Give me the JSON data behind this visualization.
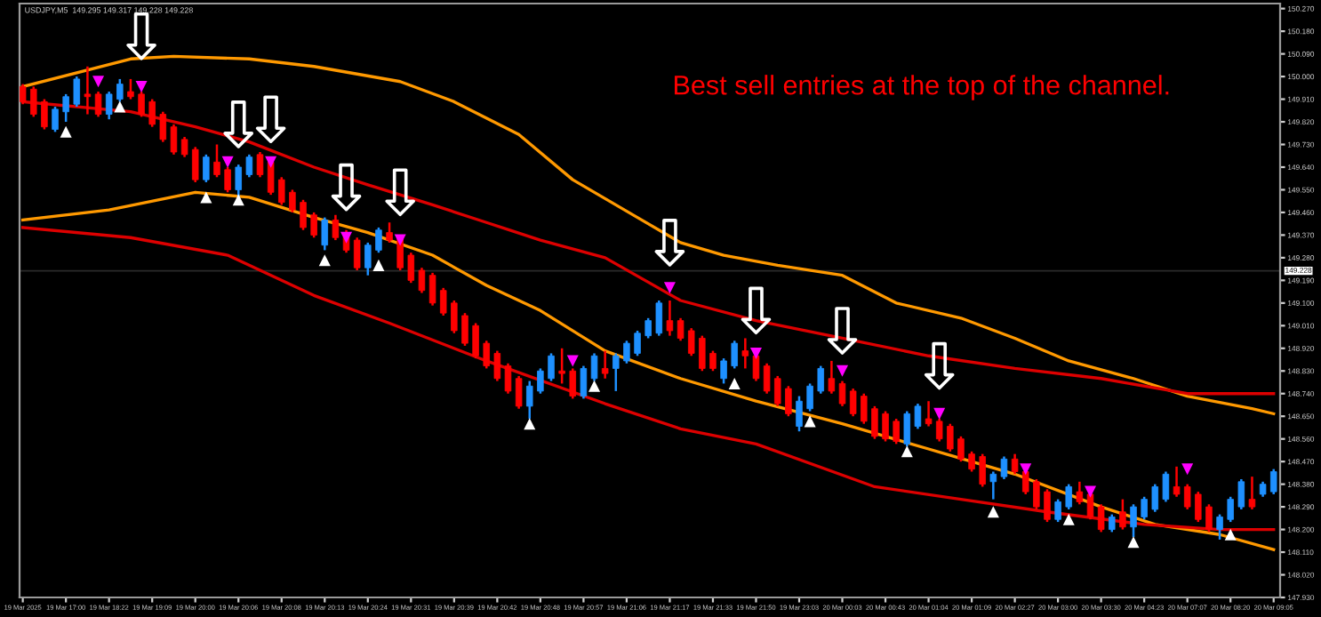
{
  "chart_data": {
    "type": "candlestick",
    "title": "USDJPY,M5  149.295 149.317 149.228 149.228",
    "annotations": [
      "Best sell entries at the top of the channel."
    ],
    "categories": [
      "19 Mar 2025",
      null,
      null,
      null,
      "19 Mar 17:00",
      null,
      null,
      null,
      "19 Mar 18:22",
      null,
      null,
      null,
      "19 Mar 19:09",
      null,
      null,
      null,
      "19 Mar 20:00",
      null,
      null,
      null,
      "19 Mar 20:06",
      null,
      null,
      null,
      "19 Mar 20:08",
      null,
      null,
      null,
      "19 Mar 20:13",
      null,
      null,
      null,
      "19 Mar 20:24",
      null,
      null,
      null,
      "19 Mar 20:31",
      null,
      null,
      null,
      "19 Mar 20:39",
      null,
      null,
      null,
      "19 Mar 20:42",
      null,
      null,
      null,
      "19 Mar 20:48",
      null,
      null,
      null,
      "19 Mar 20:57",
      null,
      null,
      null,
      "19 Mar 21:06",
      null,
      null,
      null,
      "19 Mar 21:17",
      null,
      null,
      null,
      "19 Mar 21:33",
      null,
      null,
      null,
      "19 Mar 21:50",
      null,
      null,
      null,
      "19 Mar 23:03",
      null,
      null,
      null,
      "20 Mar 00:03",
      null,
      null,
      null,
      "20 Mar 00:43",
      null,
      null,
      null,
      "20 Mar 01:04",
      null,
      null,
      null,
      "20 Mar 01:09",
      null,
      null,
      null,
      "20 Mar 02:27",
      null,
      null,
      null,
      "20 Mar 03:00",
      null,
      null,
      null,
      "20 Mar 03:30",
      null,
      null,
      null,
      "20 Mar 04:23",
      null,
      null,
      null,
      "20 Mar 07:07",
      null,
      null,
      null,
      "20 Mar 08:20",
      null,
      null,
      null,
      "20 Mar 09:05"
    ],
    "ylim": [
      147.93,
      150.29
    ],
    "yticks": [
      {
        "value": 147.93,
        "label": "147.930"
      },
      {
        "value": 148.02,
        "label": "148.020"
      },
      {
        "value": 148.11,
        "label": "148.110"
      },
      {
        "value": 148.2,
        "label": "148.200"
      },
      {
        "value": 148.29,
        "label": "148.290"
      },
      {
        "value": 148.38,
        "label": "148.380"
      },
      {
        "value": 148.47,
        "label": "148.470"
      },
      {
        "value": 148.56,
        "label": "148.560"
      },
      {
        "value": 148.65,
        "label": "148.650"
      },
      {
        "value": 148.74,
        "label": "148.740"
      },
      {
        "value": 148.83,
        "label": "148.830"
      },
      {
        "value": 148.92,
        "label": "148.920"
      },
      {
        "value": 149.01,
        "label": "149.010"
      },
      {
        "value": 149.1,
        "label": "149.100"
      },
      {
        "value": 149.19,
        "label": "149.190"
      },
      {
        "value": 149.28,
        "label": "149.280"
      },
      {
        "value": 149.37,
        "label": "149.370"
      },
      {
        "value": 149.46,
        "label": "149.460"
      },
      {
        "value": 149.55,
        "label": "149.550"
      },
      {
        "value": 149.64,
        "label": "149.640"
      },
      {
        "value": 149.73,
        "label": "149.730"
      },
      {
        "value": 149.82,
        "label": "149.820"
      },
      {
        "value": 149.91,
        "label": "149.910"
      },
      {
        "value": 150.0,
        "label": "150.000"
      },
      {
        "value": 150.09,
        "label": "150.090"
      },
      {
        "value": 150.18,
        "label": "150.180"
      },
      {
        "value": 150.27,
        "label": "150.270"
      }
    ],
    "ref_lines": [
      {
        "axis": "y",
        "value": 149.228,
        "label": "149.228",
        "color": "#2a2a2a"
      }
    ],
    "grid": false,
    "legend": false,
    "ohlc": [
      [
        149.96,
        149.97,
        149.89,
        149.9
      ],
      [
        149.95,
        149.96,
        149.84,
        149.85
      ],
      [
        149.9,
        149.91,
        149.79,
        149.8
      ],
      [
        149.79,
        149.88,
        149.78,
        149.87
      ],
      [
        149.86,
        149.93,
        149.82,
        149.92
      ],
      [
        149.89,
        150.0,
        149.88,
        149.99
      ],
      [
        149.93,
        150.04,
        149.85,
        149.92
      ],
      [
        149.93,
        149.94,
        149.84,
        149.85
      ],
      [
        149.85,
        149.94,
        149.83,
        149.93
      ],
      [
        149.91,
        149.99,
        149.9,
        149.97
      ],
      [
        149.94,
        149.99,
        149.91,
        149.92
      ],
      [
        149.93,
        149.94,
        149.84,
        149.85
      ],
      [
        149.9,
        149.91,
        149.8,
        149.81
      ],
      [
        149.85,
        149.86,
        149.74,
        149.75
      ],
      [
        149.8,
        149.81,
        149.69,
        149.7
      ],
      [
        149.75,
        149.76,
        149.68,
        149.69
      ],
      [
        149.71,
        149.72,
        149.58,
        149.59
      ],
      [
        149.59,
        149.69,
        149.58,
        149.68
      ],
      [
        149.66,
        149.73,
        149.6,
        149.61
      ],
      [
        149.63,
        149.64,
        149.54,
        149.55
      ],
      [
        149.55,
        149.65,
        149.52,
        149.64
      ],
      [
        149.61,
        149.69,
        149.6,
        149.68
      ],
      [
        149.69,
        149.7,
        149.6,
        149.61
      ],
      [
        149.66,
        149.67,
        149.53,
        149.54
      ],
      [
        149.59,
        149.6,
        149.49,
        149.5
      ],
      [
        149.54,
        149.55,
        149.46,
        149.47
      ],
      [
        149.5,
        149.51,
        149.39,
        149.4
      ],
      [
        149.45,
        149.46,
        149.36,
        149.37
      ],
      [
        149.33,
        149.44,
        149.31,
        149.43
      ],
      [
        149.43,
        149.45,
        149.35,
        149.36
      ],
      [
        149.38,
        149.39,
        149.3,
        149.31
      ],
      [
        149.35,
        149.36,
        149.23,
        149.24
      ],
      [
        149.24,
        149.34,
        149.21,
        149.33
      ],
      [
        149.31,
        149.4,
        149.3,
        149.39
      ],
      [
        149.38,
        149.42,
        149.34,
        149.35
      ],
      [
        149.36,
        149.37,
        149.23,
        149.24
      ],
      [
        149.29,
        149.3,
        149.18,
        149.19
      ],
      [
        149.23,
        149.24,
        149.14,
        149.15
      ],
      [
        149.21,
        149.22,
        149.09,
        149.1
      ],
      [
        149.15,
        149.16,
        149.05,
        149.06
      ],
      [
        149.1,
        149.11,
        148.98,
        148.99
      ],
      [
        149.05,
        149.06,
        148.93,
        148.94
      ],
      [
        149.01,
        149.02,
        148.88,
        148.89
      ],
      [
        148.94,
        148.95,
        148.84,
        148.85
      ],
      [
        148.9,
        148.91,
        148.79,
        148.8
      ],
      [
        148.85,
        148.86,
        148.74,
        148.75
      ],
      [
        148.8,
        148.81,
        148.68,
        148.69
      ],
      [
        148.69,
        148.79,
        148.64,
        148.77
      ],
      [
        148.75,
        148.84,
        148.74,
        148.83
      ],
      [
        148.8,
        148.9,
        148.79,
        148.89
      ],
      [
        148.83,
        148.92,
        148.78,
        148.82
      ],
      [
        148.83,
        148.84,
        148.72,
        148.73
      ],
      [
        148.73,
        148.85,
        148.72,
        148.84
      ],
      [
        148.8,
        148.9,
        148.79,
        148.89
      ],
      [
        148.84,
        148.91,
        148.8,
        148.82
      ],
      [
        148.84,
        148.9,
        148.75,
        148.89
      ],
      [
        148.87,
        148.95,
        148.86,
        148.94
      ],
      [
        148.9,
        148.99,
        148.89,
        148.98
      ],
      [
        148.97,
        149.04,
        148.96,
        149.03
      ],
      [
        148.98,
        149.11,
        148.97,
        149.1
      ],
      [
        149.03,
        149.11,
        148.97,
        148.99
      ],
      [
        149.03,
        149.04,
        148.95,
        148.96
      ],
      [
        148.99,
        149.0,
        148.89,
        148.9
      ],
      [
        148.96,
        148.97,
        148.83,
        148.84
      ],
      [
        148.9,
        148.91,
        148.83,
        148.84
      ],
      [
        148.8,
        148.88,
        148.78,
        148.87
      ],
      [
        148.85,
        148.95,
        148.84,
        148.94
      ],
      [
        148.91,
        148.96,
        148.84,
        148.89
      ],
      [
        148.89,
        148.9,
        148.79,
        148.8
      ],
      [
        148.85,
        148.86,
        148.74,
        148.75
      ],
      [
        148.8,
        148.81,
        148.69,
        148.7
      ],
      [
        148.76,
        148.77,
        148.65,
        148.66
      ],
      [
        148.61,
        148.73,
        148.59,
        148.71
      ],
      [
        148.68,
        148.78,
        148.67,
        148.77
      ],
      [
        148.75,
        148.85,
        148.74,
        148.84
      ],
      [
        148.8,
        148.87,
        148.74,
        148.75
      ],
      [
        148.78,
        148.79,
        148.69,
        148.7
      ],
      [
        148.75,
        148.76,
        148.65,
        148.66
      ],
      [
        148.73,
        148.74,
        148.62,
        148.63
      ],
      [
        148.68,
        148.69,
        148.56,
        148.57
      ],
      [
        148.66,
        148.67,
        148.55,
        148.56
      ],
      [
        148.63,
        148.64,
        148.54,
        148.55
      ],
      [
        148.54,
        148.67,
        148.53,
        148.66
      ],
      [
        148.61,
        148.7,
        148.6,
        148.69
      ],
      [
        148.64,
        148.71,
        148.61,
        148.62
      ],
      [
        148.63,
        148.64,
        148.55,
        148.56
      ],
      [
        148.61,
        148.62,
        148.51,
        148.52
      ],
      [
        148.56,
        148.57,
        148.47,
        148.48
      ],
      [
        148.5,
        148.51,
        148.43,
        148.44
      ],
      [
        148.49,
        148.5,
        148.37,
        148.38
      ],
      [
        148.39,
        148.43,
        148.32,
        148.42
      ],
      [
        148.41,
        148.49,
        148.4,
        148.48
      ],
      [
        148.48,
        148.5,
        148.42,
        148.43
      ],
      [
        148.43,
        148.44,
        148.34,
        148.35
      ],
      [
        148.39,
        148.4,
        148.28,
        148.29
      ],
      [
        148.35,
        148.36,
        148.23,
        148.24
      ],
      [
        148.24,
        148.32,
        148.23,
        148.31
      ],
      [
        148.29,
        148.38,
        148.28,
        148.37
      ],
      [
        148.35,
        148.39,
        148.3,
        148.31
      ],
      [
        148.34,
        148.35,
        148.24,
        148.25
      ],
      [
        148.29,
        148.3,
        148.19,
        148.2
      ],
      [
        148.2,
        148.26,
        148.19,
        148.25
      ],
      [
        148.27,
        148.32,
        148.2,
        148.21
      ],
      [
        148.21,
        148.3,
        148.17,
        148.29
      ],
      [
        148.25,
        148.33,
        148.24,
        148.32
      ],
      [
        148.28,
        148.38,
        148.27,
        148.37
      ],
      [
        148.32,
        148.43,
        148.31,
        148.42
      ],
      [
        148.37,
        148.45,
        148.33,
        148.34
      ],
      [
        148.37,
        148.38,
        148.28,
        148.29
      ],
      [
        148.34,
        148.35,
        148.23,
        148.24
      ],
      [
        148.29,
        148.3,
        148.19,
        148.2
      ],
      [
        148.2,
        148.26,
        148.16,
        148.25
      ],
      [
        148.24,
        148.33,
        148.23,
        148.32
      ],
      [
        148.29,
        148.4,
        148.28,
        148.39
      ],
      [
        148.32,
        148.41,
        148.28,
        148.29
      ],
      [
        148.34,
        148.39,
        148.33,
        148.38
      ],
      [
        148.35,
        148.44,
        148.34,
        148.43
      ]
    ],
    "colors": [
      "#ff0000",
      "#ff0000",
      "#ff0000",
      "#1e90ff",
      "#1e90ff",
      "#1e90ff",
      "#ff0000",
      "#ff0000",
      "#1e90ff",
      "#1e90ff",
      "#ff0000",
      "#ff0000",
      "#ff0000",
      "#ff0000",
      "#ff0000",
      "#ff0000",
      "#ff0000",
      "#1e90ff",
      "#ff0000",
      "#ff0000",
      "#1e90ff",
      "#1e90ff",
      "#ff0000",
      "#ff0000",
      "#ff0000",
      "#ff0000",
      "#ff0000",
      "#ff0000",
      "#1e90ff",
      "#ff0000",
      "#ff0000",
      "#ff0000",
      "#1e90ff",
      "#1e90ff",
      "#ff0000",
      "#ff0000",
      "#ff0000",
      "#ff0000",
      "#ff0000",
      "#ff0000",
      "#ff0000",
      "#ff0000",
      "#ff0000",
      "#ff0000",
      "#ff0000",
      "#ff0000",
      "#ff0000",
      "#1e90ff",
      "#1e90ff",
      "#1e90ff",
      "#ff0000",
      "#ff0000",
      "#1e90ff",
      "#1e90ff",
      "#ff0000",
      "#1e90ff",
      "#1e90ff",
      "#1e90ff",
      "#1e90ff",
      "#1e90ff",
      "#ff0000",
      "#ff0000",
      "#ff0000",
      "#ff0000",
      "#ff0000",
      "#1e90ff",
      "#1e90ff",
      "#ff0000",
      "#ff0000",
      "#ff0000",
      "#ff0000",
      "#ff0000",
      "#1e90ff",
      "#1e90ff",
      "#1e90ff",
      "#ff0000",
      "#ff0000",
      "#ff0000",
      "#ff0000",
      "#ff0000",
      "#ff0000",
      "#ff0000",
      "#1e90ff",
      "#1e90ff",
      "#ff0000",
      "#ff0000",
      "#ff0000",
      "#ff0000",
      "#ff0000",
      "#ff0000",
      "#1e90ff",
      "#1e90ff",
      "#ff0000",
      "#ff0000",
      "#ff0000",
      "#ff0000",
      "#1e90ff",
      "#1e90ff",
      "#ff0000",
      "#ff0000",
      "#ff0000",
      "#1e90ff",
      "#ff0000",
      "#1e90ff",
      "#1e90ff",
      "#1e90ff",
      "#1e90ff",
      "#ff0000",
      "#ff0000",
      "#ff0000",
      "#ff0000",
      "#1e90ff",
      "#1e90ff",
      "#1e90ff",
      "#ff0000",
      "#1e90ff",
      "#1e90ff"
    ],
    "series": [
      {
        "type": "line",
        "color": "#ff9900",
        "values": [
          149.96,
          null,
          null,
          null,
          null,
          null,
          null,
          null,
          null,
          null,
          150.07,
          null,
          null,
          null,
          150.08,
          null,
          null,
          null,
          null,
          null,
          null,
          150.07,
          null,
          null,
          null,
          null,
          null,
          150.04,
          null,
          null,
          null,
          null,
          null,
          null,
          null,
          149.98,
          null,
          null,
          null,
          null,
          149.9,
          null,
          null,
          null,
          null,
          null,
          149.77,
          null,
          null,
          null,
          null,
          149.59,
          null,
          null,
          null,
          null,
          null,
          149.44,
          null,
          null,
          null,
          149.34,
          null,
          null,
          null,
          149.29,
          null,
          null,
          null,
          null,
          149.25,
          null,
          null,
          null,
          null,
          null,
          149.21,
          null,
          null,
          null,
          null,
          149.1,
          null,
          null,
          null,
          null,
          null,
          149.04,
          null,
          null,
          null,
          null,
          148.96,
          null,
          null,
          null,
          null,
          148.87,
          null,
          null,
          null,
          null,
          null,
          148.8,
          null,
          null,
          null,
          null,
          148.73,
          null,
          null,
          null,
          null,
          null,
          148.68,
          null,
          148.66
        ]
      },
      {
        "type": "line",
        "color": "#dd0000",
        "values": [
          149.9,
          null,
          null,
          null,
          null,
          null,
          null,
          null,
          null,
          null,
          149.86,
          null,
          null,
          null,
          null,
          null,
          149.8,
          null,
          null,
          null,
          null,
          149.74,
          null,
          null,
          null,
          null,
          null,
          149.64,
          null,
          null,
          null,
          null,
          149.57,
          null,
          null,
          null,
          null,
          null,
          149.49,
          null,
          null,
          null,
          null,
          149.42,
          null,
          null,
          null,
          null,
          149.35,
          null,
          null,
          null,
          null,
          null,
          149.28,
          null,
          null,
          null,
          null,
          null,
          null,
          149.11,
          null,
          null,
          null,
          null,
          null,
          null,
          149.03,
          null,
          null,
          null,
          null,
          null,
          null,
          null,
          148.96,
          null,
          null,
          null,
          null,
          null,
          null,
          null,
          148.89,
          null,
          null,
          null,
          null,
          null,
          null,
          null,
          148.84,
          null,
          null,
          null,
          null,
          null,
          null,
          null,
          148.8,
          null,
          null,
          null,
          null,
          null,
          null,
          null,
          148.74,
          null,
          null,
          null,
          null,
          null,
          null,
          null,
          148.74
        ]
      },
      {
        "type": "line",
        "color": "#ff9900",
        "values": [
          149.43,
          null,
          null,
          null,
          null,
          null,
          null,
          null,
          149.47,
          null,
          null,
          null,
          null,
          null,
          null,
          null,
          149.54,
          null,
          null,
          null,
          null,
          149.52,
          null,
          null,
          null,
          null,
          null,
          149.44,
          null,
          null,
          null,
          null,
          149.38,
          null,
          null,
          null,
          null,
          null,
          149.29,
          null,
          null,
          null,
          null,
          149.17,
          null,
          null,
          null,
          null,
          149.07,
          null,
          null,
          null,
          null,
          null,
          148.91,
          null,
          null,
          null,
          null,
          null,
          null,
          148.8,
          null,
          null,
          null,
          null,
          null,
          null,
          148.71,
          null,
          null,
          null,
          null,
          null,
          null,
          null,
          148.62,
          null,
          null,
          null,
          null,
          null,
          null,
          null,
          148.52,
          null,
          null,
          null,
          null,
          null,
          null,
          null,
          148.42,
          null,
          null,
          null,
          null,
          null,
          null,
          null,
          148.29,
          null,
          null,
          null,
          null,
          148.22,
          null,
          null,
          null,
          null,
          null,
          148.18,
          null,
          null,
          null,
          null,
          148.12
        ]
      },
      {
        "type": "line",
        "color": "#dd0000",
        "values": [
          149.4,
          null,
          null,
          null,
          null,
          null,
          null,
          null,
          null,
          null,
          149.36,
          null,
          null,
          null,
          null,
          null,
          null,
          null,
          null,
          149.29,
          null,
          null,
          null,
          null,
          null,
          null,
          null,
          149.13,
          null,
          null,
          null,
          null,
          null,
          null,
          149.02,
          null,
          null,
          null,
          null,
          null,
          null,
          null,
          null,
          148.87,
          null,
          null,
          null,
          null,
          null,
          null,
          null,
          null,
          null,
          null,
          148.7,
          null,
          null,
          null,
          null,
          null,
          null,
          148.6,
          null,
          null,
          null,
          null,
          null,
          null,
          148.54,
          null,
          null,
          null,
          null,
          null,
          null,
          null,
          null,
          null,
          null,
          148.37,
          null,
          null,
          null,
          null,
          null,
          null,
          null,
          148.32,
          null,
          null,
          null,
          null,
          null,
          null,
          null,
          148.27,
          null,
          null,
          null,
          null,
          null,
          null,
          null,
          null,
          148.22,
          null,
          null,
          null,
          null,
          null,
          null,
          148.2,
          null,
          null,
          null,
          null,
          148.2
        ]
      },
      {
        "type": "scatter",
        "marker": "triangle",
        "color": "#ffffff",
        "values": [
          null,
          null,
          null,
          null,
          149.78,
          null,
          null,
          null,
          null,
          149.88,
          null,
          null,
          null,
          null,
          null,
          null,
          null,
          149.52,
          null,
          null,
          149.51,
          null,
          null,
          null,
          null,
          null,
          null,
          null,
          149.27,
          null,
          null,
          null,
          null,
          149.25,
          null,
          null,
          null,
          null,
          null,
          null,
          null,
          null,
          null,
          null,
          null,
          null,
          null,
          148.62,
          null,
          null,
          null,
          null,
          null,
          148.77,
          null,
          null,
          null,
          null,
          null,
          null,
          null,
          null,
          null,
          null,
          null,
          null,
          148.78,
          null,
          null,
          null,
          null,
          null,
          null,
          148.63,
          null,
          null,
          null,
          null,
          null,
          null,
          null,
          null,
          148.51,
          null,
          null,
          null,
          null,
          null,
          null,
          null,
          148.27,
          null,
          null,
          null,
          null,
          null,
          null,
          148.24,
          null,
          null,
          null,
          null,
          null,
          148.15,
          null,
          null,
          null,
          null,
          null,
          null,
          null,
          null,
          148.18,
          null,
          null,
          null,
          null
        ]
      },
      {
        "type": "scatter",
        "marker": "triangle",
        "color": "#ff00ff",
        "values": [
          null,
          null,
          null,
          null,
          null,
          null,
          null,
          149.98,
          null,
          null,
          null,
          149.96,
          null,
          null,
          null,
          null,
          null,
          null,
          null,
          149.66,
          null,
          null,
          null,
          149.66,
          null,
          null,
          null,
          null,
          null,
          null,
          149.36,
          null,
          null,
          null,
          null,
          149.35,
          null,
          null,
          null,
          null,
          null,
          null,
          null,
          null,
          null,
          null,
          null,
          null,
          null,
          null,
          null,
          148.87,
          null,
          null,
          null,
          null,
          null,
          null,
          null,
          null,
          149.16,
          null,
          null,
          null,
          null,
          null,
          null,
          null,
          148.9,
          null,
          null,
          null,
          null,
          null,
          null,
          null,
          148.83,
          null,
          null,
          null,
          null,
          null,
          null,
          null,
          null,
          148.66,
          null,
          null,
          null,
          null,
          null,
          null,
          null,
          148.44,
          null,
          null,
          null,
          null,
          null,
          148.35,
          null,
          null,
          null,
          null,
          null,
          null,
          null,
          null,
          148.44,
          null,
          null,
          null,
          null,
          null,
          null,
          null,
          null
        ]
      },
      {
        "type": "scatter",
        "color": "#ffffff",
        "values": [
          null,
          null,
          null,
          null,
          null,
          null,
          null,
          null,
          null,
          null,
          null,
          150.16,
          null,
          null,
          null,
          null,
          null,
          null,
          null,
          null,
          149.81,
          null,
          null,
          149.83,
          null,
          null,
          null,
          null,
          null,
          null,
          149.56,
          null,
          null,
          null,
          null,
          149.54,
          null,
          null,
          null,
          null,
          null,
          null,
          null,
          null,
          null,
          null,
          null,
          null,
          null,
          null,
          null,
          null,
          null,
          null,
          null,
          null,
          null,
          null,
          null,
          null,
          149.34,
          null,
          null,
          null,
          null,
          null,
          null,
          null,
          149.07,
          null,
          null,
          null,
          null,
          null,
          null,
          null,
          148.99,
          null,
          null,
          null,
          null,
          null,
          null,
          null,
          null,
          148.85,
          null,
          null,
          null,
          null,
          null,
          null,
          null,
          null,
          null,
          null,
          null,
          null,
          null,
          null,
          null,
          null,
          null,
          null,
          null,
          null,
          null,
          null,
          null,
          null,
          null,
          null,
          null,
          null,
          null,
          null,
          null
        ]
      }
    ]
  }
}
